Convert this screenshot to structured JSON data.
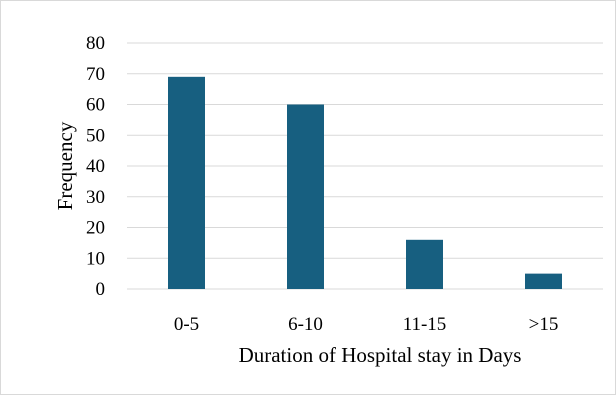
{
  "chart_data": {
    "type": "bar",
    "title": "",
    "xlabel": "Duration of Hospital stay in Days",
    "ylabel": "Frequency",
    "categories": [
      "0-5",
      "6-10",
      "11-15",
      ">15"
    ],
    "values": [
      69,
      60,
      16,
      5
    ],
    "ylim": [
      0,
      80
    ],
    "yticks": [
      0,
      10,
      20,
      30,
      40,
      50,
      60,
      70,
      80
    ],
    "grid": "horizontal",
    "legend": "none",
    "bar_color": "#175f80",
    "grid_color": "#d9d9d9"
  }
}
